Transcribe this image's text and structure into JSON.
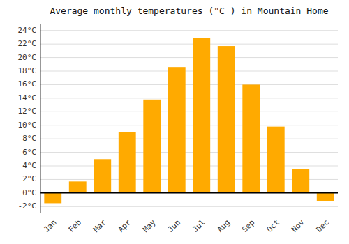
{
  "chart_data": {
    "type": "bar",
    "title": "Average monthly temperatures (°C ) in Mountain Home",
    "categories": [
      "Jan",
      "Feb",
      "Mar",
      "Apr",
      "May",
      "Jun",
      "Jul",
      "Aug",
      "Sep",
      "Oct",
      "Nov",
      "Dec"
    ],
    "values": [
      -1.5,
      1.7,
      5.0,
      9.0,
      13.8,
      18.6,
      22.9,
      21.7,
      16.0,
      9.8,
      3.5,
      -1.2
    ],
    "color": "#FFAA00",
    "ylim": [
      -3,
      25
    ],
    "yticks": [
      {
        "value": -2,
        "label": "-2°C"
      },
      {
        "value": 0,
        "label": "0°C"
      },
      {
        "value": 2,
        "label": "2°C"
      },
      {
        "value": 4,
        "label": "4°C"
      },
      {
        "value": 6,
        "label": "6°C"
      },
      {
        "value": 8,
        "label": "8°C"
      },
      {
        "value": 10,
        "label": "10°C"
      },
      {
        "value": 12,
        "label": "12°C"
      },
      {
        "value": 14,
        "label": "14°C"
      },
      {
        "value": 16,
        "label": "16°C"
      },
      {
        "value": 18,
        "label": "18°C"
      },
      {
        "value": 20,
        "label": "20°C"
      },
      {
        "value": 22,
        "label": "22°C"
      },
      {
        "value": 24,
        "label": "24°C"
      }
    ],
    "grid": true
  }
}
